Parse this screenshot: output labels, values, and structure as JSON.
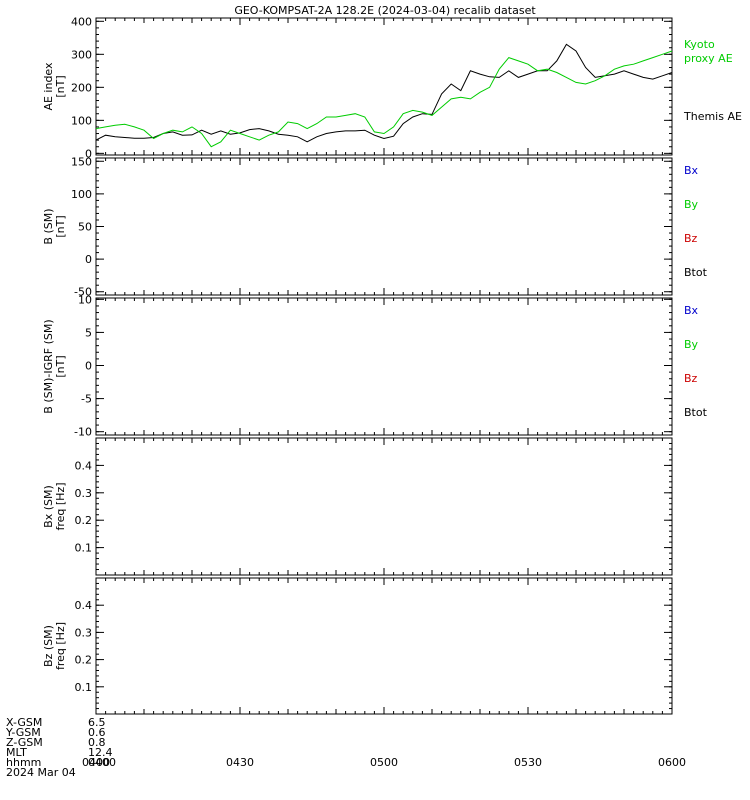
{
  "title": "GEO-KOMPSAT-2A 128.2E (2024-03-04) recalib dataset",
  "colors": {
    "black": "#000000",
    "green": "#00cc00",
    "blue": "#0000cc",
    "red": "#cc0000"
  },
  "chart_data": [
    {
      "type": "line",
      "panel": "ae-index",
      "ylabel": [
        "AE index",
        "[nT]"
      ],
      "ylim": [
        -5,
        410
      ],
      "yticks": [
        0,
        100,
        200,
        300,
        400
      ],
      "xlim": [
        0,
        120
      ],
      "legend": [
        {
          "label": "Kyoto",
          "color": "#00cc00"
        },
        {
          "label": "proxy AE",
          "color": "#00cc00"
        },
        {
          "label": "Themis AE",
          "color": "#000000"
        }
      ],
      "series": [
        {
          "name": "Themis AE",
          "color": "#000000",
          "x": [
            0,
            2,
            4,
            6,
            8,
            10,
            12,
            14,
            16,
            18,
            20,
            22,
            24,
            26,
            28,
            30,
            32,
            34,
            36,
            38,
            40,
            42,
            44,
            46,
            48,
            50,
            52,
            54,
            56,
            58,
            60,
            62,
            64,
            66,
            68,
            70,
            72,
            74,
            76,
            78,
            80,
            82,
            84,
            86,
            88,
            90,
            92,
            94,
            96,
            98,
            100,
            102,
            104,
            106,
            108,
            110,
            112,
            114,
            116,
            118,
            120
          ],
          "y": [
            40,
            55,
            50,
            48,
            46,
            46,
            48,
            60,
            65,
            55,
            56,
            70,
            58,
            68,
            58,
            62,
            72,
            75,
            68,
            58,
            55,
            50,
            35,
            50,
            60,
            65,
            68,
            68,
            70,
            55,
            45,
            52,
            90,
            110,
            120,
            118,
            180,
            210,
            190,
            250,
            240,
            232,
            230,
            250,
            230,
            240,
            250,
            250,
            280,
            330,
            310,
            260,
            230,
            235,
            240,
            250,
            240,
            230,
            225,
            235,
            245
          ]
        },
        {
          "name": "Kyoto proxy AE",
          "color": "#00cc00",
          "x": [
            0,
            2,
            4,
            6,
            8,
            10,
            12,
            14,
            16,
            18,
            20,
            22,
            24,
            26,
            28,
            30,
            32,
            34,
            36,
            38,
            40,
            42,
            44,
            46,
            48,
            50,
            52,
            54,
            56,
            58,
            60,
            62,
            64,
            66,
            68,
            70,
            72,
            74,
            76,
            78,
            80,
            82,
            84,
            86,
            88,
            90,
            92,
            94,
            96,
            98,
            100,
            102,
            104,
            106,
            108,
            110,
            112,
            114,
            116,
            118,
            120
          ],
          "y": [
            75,
            80,
            85,
            88,
            80,
            70,
            45,
            60,
            70,
            65,
            80,
            60,
            20,
            35,
            70,
            60,
            50,
            40,
            55,
            65,
            95,
            90,
            75,
            90,
            110,
            110,
            115,
            120,
            110,
            65,
            60,
            80,
            120,
            130,
            125,
            115,
            140,
            165,
            170,
            165,
            185,
            200,
            255,
            290,
            280,
            270,
            250,
            255,
            245,
            230,
            215,
            210,
            220,
            235,
            255,
            265,
            270,
            280,
            290,
            300,
            310
          ]
        }
      ]
    },
    {
      "type": "line",
      "panel": "b-field",
      "ylabel": [
        "B (SM)",
        "[nT]"
      ],
      "ylim": [
        -55,
        155
      ],
      "yticks": [
        -50,
        0,
        50,
        100,
        150
      ],
      "legend": [
        {
          "label": "Bx",
          "color": "#0000cc"
        },
        {
          "label": "By",
          "color": "#00cc00"
        },
        {
          "label": "Bz",
          "color": "#cc0000"
        },
        {
          "label": "Btot",
          "color": "#000000"
        }
      ],
      "series": []
    },
    {
      "type": "line",
      "panel": "b-minus-igrf",
      "ylabel": [
        "B (SM)-IGRF (SM)",
        "[nT]"
      ],
      "ylim": [
        -10.5,
        10.2
      ],
      "yticks": [
        -10,
        -5,
        0,
        5,
        10
      ],
      "legend": [
        {
          "label": "Bx",
          "color": "#0000cc"
        },
        {
          "label": "By",
          "color": "#00cc00"
        },
        {
          "label": "Bz",
          "color": "#cc0000"
        },
        {
          "label": "Btot",
          "color": "#000000"
        }
      ],
      "series": []
    },
    {
      "type": "heatmap",
      "panel": "bx-freq",
      "ylabel": [
        "Bx (SM)",
        "freq [Hz]"
      ],
      "ylim": [
        0,
        0.5
      ],
      "yticks": [
        0.1,
        0.2,
        0.3,
        0.4
      ],
      "series": []
    },
    {
      "type": "heatmap",
      "panel": "bz-freq",
      "ylabel": [
        "Bz (SM)",
        "freq [Hz]"
      ],
      "ylim": [
        0,
        0.5
      ],
      "yticks": [
        0.1,
        0.2,
        0.3,
        0.4
      ],
      "series": []
    }
  ],
  "xaxis": {
    "tick_labels": [
      "0400",
      "0430",
      "0500",
      "0530",
      "0600"
    ]
  },
  "ephemeris": [
    {
      "label": "X-GSM",
      "value": "6.5"
    },
    {
      "label": "Y-GSM",
      "value": "0.6"
    },
    {
      "label": "Z-GSM",
      "value": "0.8"
    },
    {
      "label": "MLT",
      "value": "12.4"
    },
    {
      "label": "hhmm",
      "value": "0400"
    }
  ],
  "date_label": "2024 Mar 04"
}
